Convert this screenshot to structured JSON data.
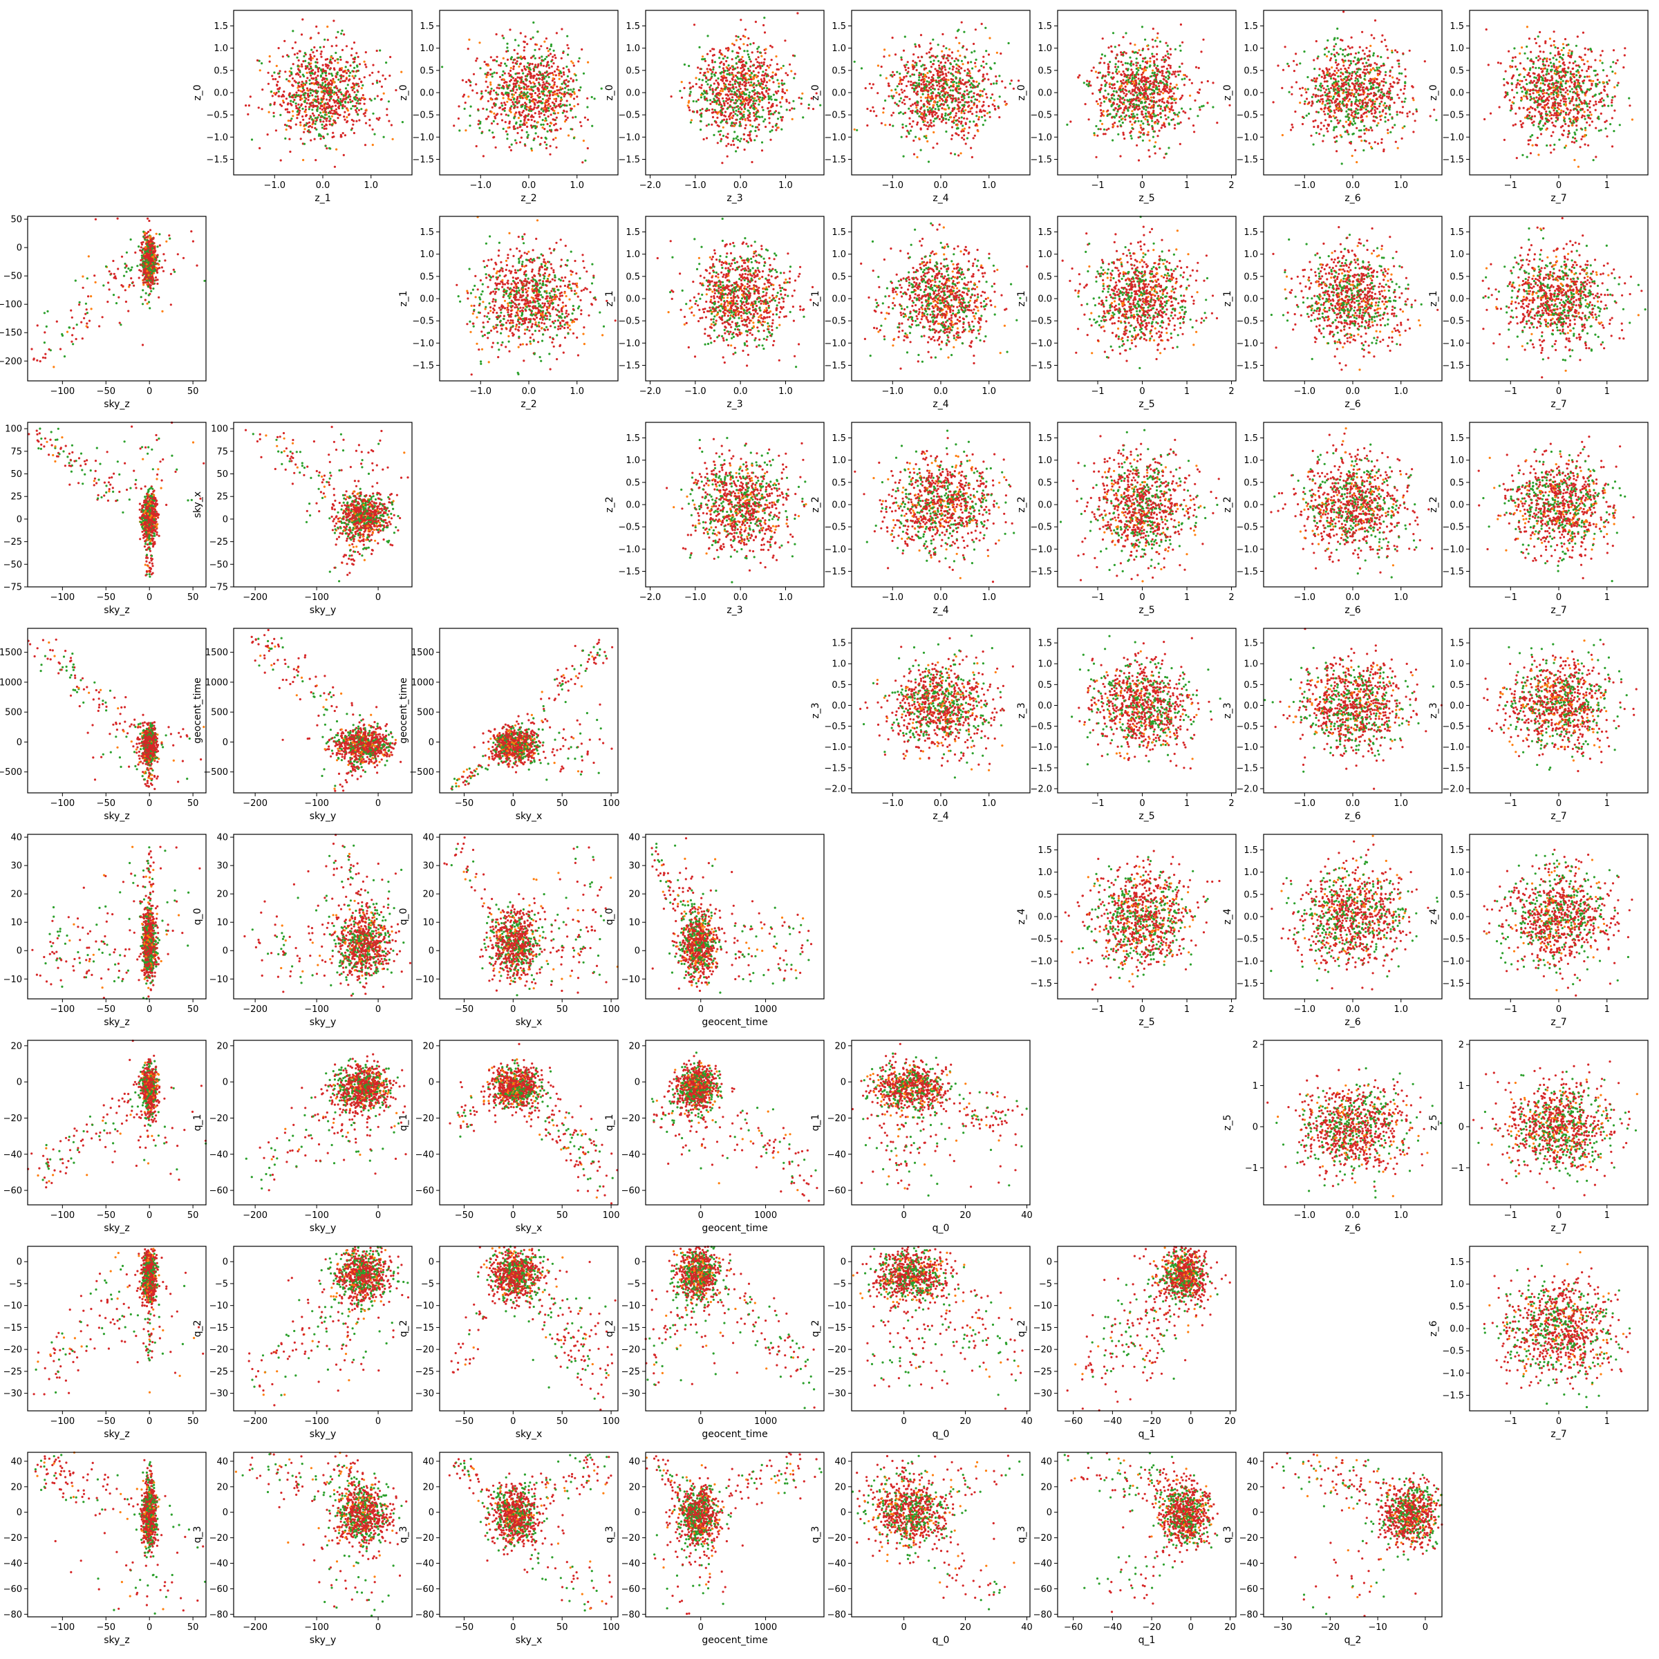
{
  "chart_data": {
    "type": "scatter",
    "layout": "corner-pair-matrix",
    "colors": {
      "point_a": "#2ca02c",
      "point_b": "#d62728",
      "point_c": "#ff7f0e"
    },
    "lower_vars": [
      "sky_z",
      "sky_y",
      "sky_x",
      "geocent_time",
      "q_0",
      "q_1",
      "q_2",
      "q_3"
    ],
    "upper_vars": [
      "z_0",
      "z_1",
      "z_2",
      "z_3",
      "z_4",
      "z_5",
      "z_6",
      "z_7"
    ],
    "axes": {
      "sky_z": {
        "range": [
          -140,
          65
        ],
        "ticks": [
          -100,
          -50,
          0,
          50
        ],
        "tick_labels": [
          "−100",
          "−50",
          "0",
          "50"
        ]
      },
      "sky_y": {
        "range": [
          -235,
          55
        ],
        "ticks": [
          -200,
          -150,
          -100,
          -50,
          0,
          50
        ],
        "tick_labels": [
          "−200",
          "−150",
          "−100",
          "−50",
          "0",
          "50"
        ]
      },
      "sky_x": {
        "range": [
          -75,
          107
        ],
        "ticks": [
          -75,
          -50,
          -25,
          0,
          25,
          50,
          75,
          100
        ],
        "tick_labels": [
          "−75",
          "−50",
          "−25",
          "0",
          "25",
          "50",
          "75",
          "100"
        ]
      },
      "geocent_time": {
        "range": [
          -850,
          1900
        ],
        "ticks": [
          -500,
          0,
          500,
          1000,
          1500
        ],
        "tick_labels": [
          "−500",
          "0",
          "500",
          "1000",
          "1500"
        ]
      },
      "q_0": {
        "range": [
          -17,
          41
        ],
        "ticks": [
          -10,
          0,
          10,
          20,
          30,
          40
        ],
        "tick_labels": [
          "−10",
          "0",
          "10",
          "20",
          "30",
          "40"
        ]
      },
      "q_1": {
        "range": [
          -68,
          23
        ],
        "ticks": [
          -60,
          -40,
          -20,
          0,
          20
        ],
        "tick_labels": [
          "−60",
          "−40",
          "−20",
          "0",
          "20"
        ]
      },
      "q_2": {
        "range": [
          -34,
          3.5
        ],
        "ticks": [
          -30,
          -25,
          -20,
          -15,
          -10,
          -5,
          0
        ],
        "tick_labels": [
          "−30",
          "−25",
          "−20",
          "−15",
          "−10",
          "−5",
          "0"
        ]
      },
      "q_3": {
        "range": [
          -82,
          47
        ],
        "ticks": [
          -80,
          -60,
          -40,
          -20,
          0,
          20,
          40
        ],
        "tick_labels": [
          "−80",
          "−60",
          "−40",
          "−20",
          "0",
          "20",
          "40"
        ]
      },
      "z_0": {
        "range": [
          -1.85,
          1.85
        ],
        "ticks": [
          -1.5,
          -1.0,
          -0.5,
          0.0,
          0.5,
          1.0,
          1.5
        ],
        "tick_labels": [
          "−1.5",
          "−1.0",
          "−0.5",
          "0.0",
          "0.5",
          "1.0",
          "1.5"
        ]
      },
      "z_1": {
        "range": [
          -1.85,
          1.85
        ],
        "ticks": [
          -1.5,
          -1.0,
          -0.5,
          0.0,
          0.5,
          1.0,
          1.5
        ],
        "tick_labels": [
          "−1.5",
          "−1.0",
          "−0.5",
          "0.0",
          "0.5",
          "1.0",
          "1.5"
        ]
      },
      "z_2": {
        "range": [
          -1.85,
          1.85
        ],
        "ticks": [
          -1.5,
          -1.0,
          -0.5,
          0.0,
          0.5,
          1.0,
          1.5
        ],
        "tick_labels": [
          "−1.5",
          "−1.0",
          "−0.5",
          "0.0",
          "0.5",
          "1.0",
          "1.5"
        ]
      },
      "z_3": {
        "range": [
          -2.1,
          1.85
        ],
        "ticks": [
          -2.0,
          -1.5,
          -1.0,
          -0.5,
          0.0,
          0.5,
          1.0,
          1.5
        ],
        "tick_labels": [
          "−2.0",
          "−1.5",
          "−1.0",
          "−0.5",
          "0.0",
          "0.5",
          "1.0",
          "1.5"
        ]
      },
      "z_4": {
        "range": [
          -1.85,
          1.85
        ],
        "ticks": [
          -1.5,
          -1.0,
          -0.5,
          0.0,
          0.5,
          1.0,
          1.5
        ],
        "tick_labels": [
          "−1.5",
          "−1.0",
          "−0.5",
          "0.0",
          "0.5",
          "1.0",
          "1.5"
        ]
      },
      "z_5": {
        "range": [
          -1.9,
          2.1
        ],
        "ticks": [
          -1,
          0,
          1,
          2
        ],
        "tick_labels": [
          "−1",
          "0",
          "1",
          "2"
        ]
      },
      "z_6": {
        "range": [
          -1.85,
          1.85
        ],
        "ticks": [
          -1.5,
          -1.0,
          -0.5,
          0.0,
          0.5,
          1.0,
          1.5
        ],
        "tick_labels": [
          "−1.5",
          "−1.0",
          "−0.5",
          "0.0",
          "0.5",
          "1.0",
          "1.5"
        ]
      },
      "z_7": {
        "range": [
          -1.85,
          1.85
        ],
        "ticks": [
          -1,
          0,
          1
        ],
        "tick_labels": [
          "−1",
          "0",
          "1"
        ]
      }
    },
    "z_x_ticks": {
      "z_1": [
        -1,
        0,
        1
      ],
      "z_2": [
        -1,
        0,
        1
      ],
      "z_3": [
        -2,
        -1,
        0,
        1
      ],
      "z_4": [
        -1,
        0,
        1
      ],
      "z_5": [
        -1,
        0,
        1,
        2
      ],
      "z_6": [
        -1,
        0,
        1
      ],
      "z_7": [
        -1,
        0,
        1
      ]
    },
    "z_y_ticks": {
      "z_0": [
        -1.5,
        -1.0,
        -0.5,
        0.0,
        0.5,
        1.0,
        1.5
      ],
      "z_1": [
        -1.5,
        -1.0,
        -0.5,
        0.0,
        0.5,
        1.0,
        1.5
      ],
      "z_2": [
        -1.5,
        -1.0,
        -0.5,
        0.0,
        0.5,
        1.0,
        1.5
      ],
      "z_3": [
        -2.0,
        -1.5,
        -1.0,
        -0.5,
        0.0,
        0.5,
        1.0,
        1.5
      ],
      "z_4": [
        -1.5,
        -1.0,
        -0.5,
        0.0,
        0.5,
        1.0,
        1.5
      ],
      "z_5": [
        -1,
        0,
        1,
        2
      ],
      "z_6": [
        -1.5,
        -1.0,
        -0.5,
        0.0,
        0.5,
        1.0,
        1.5
      ]
    },
    "lower_y_ticks": {
      "sky_y": [
        -200,
        -150,
        -100,
        -50,
        0,
        50
      ],
      "sky_x": [
        -75,
        -50,
        -25,
        0,
        25,
        50,
        75,
        100
      ],
      "geocent_time": [
        -500,
        0,
        500,
        1000,
        1500
      ],
      "q_0": [
        -10,
        0,
        10,
        20,
        30,
        40
      ],
      "q_1": [
        -60,
        -40,
        -20,
        0,
        20
      ],
      "q_2": [
        -30,
        -25,
        -20,
        -15,
        -10,
        -5,
        0
      ],
      "q_3": [
        -80,
        -60,
        -40,
        -20,
        0,
        20,
        40
      ]
    },
    "lower_x_ticks": {
      "sky_z": [
        -100,
        -50,
        0,
        50
      ],
      "sky_y": [
        -200,
        -100,
        0
      ],
      "sky_x": [
        -50,
        0,
        50,
        100
      ],
      "geocent_time": [
        0,
        1000
      ],
      "q_0": [
        0,
        20,
        40
      ],
      "q_1": [
        -60,
        -40,
        -20,
        0,
        20
      ],
      "q_2": [
        -30,
        -20,
        -10,
        0
      ]
    },
    "points_per_panel": 900
  }
}
